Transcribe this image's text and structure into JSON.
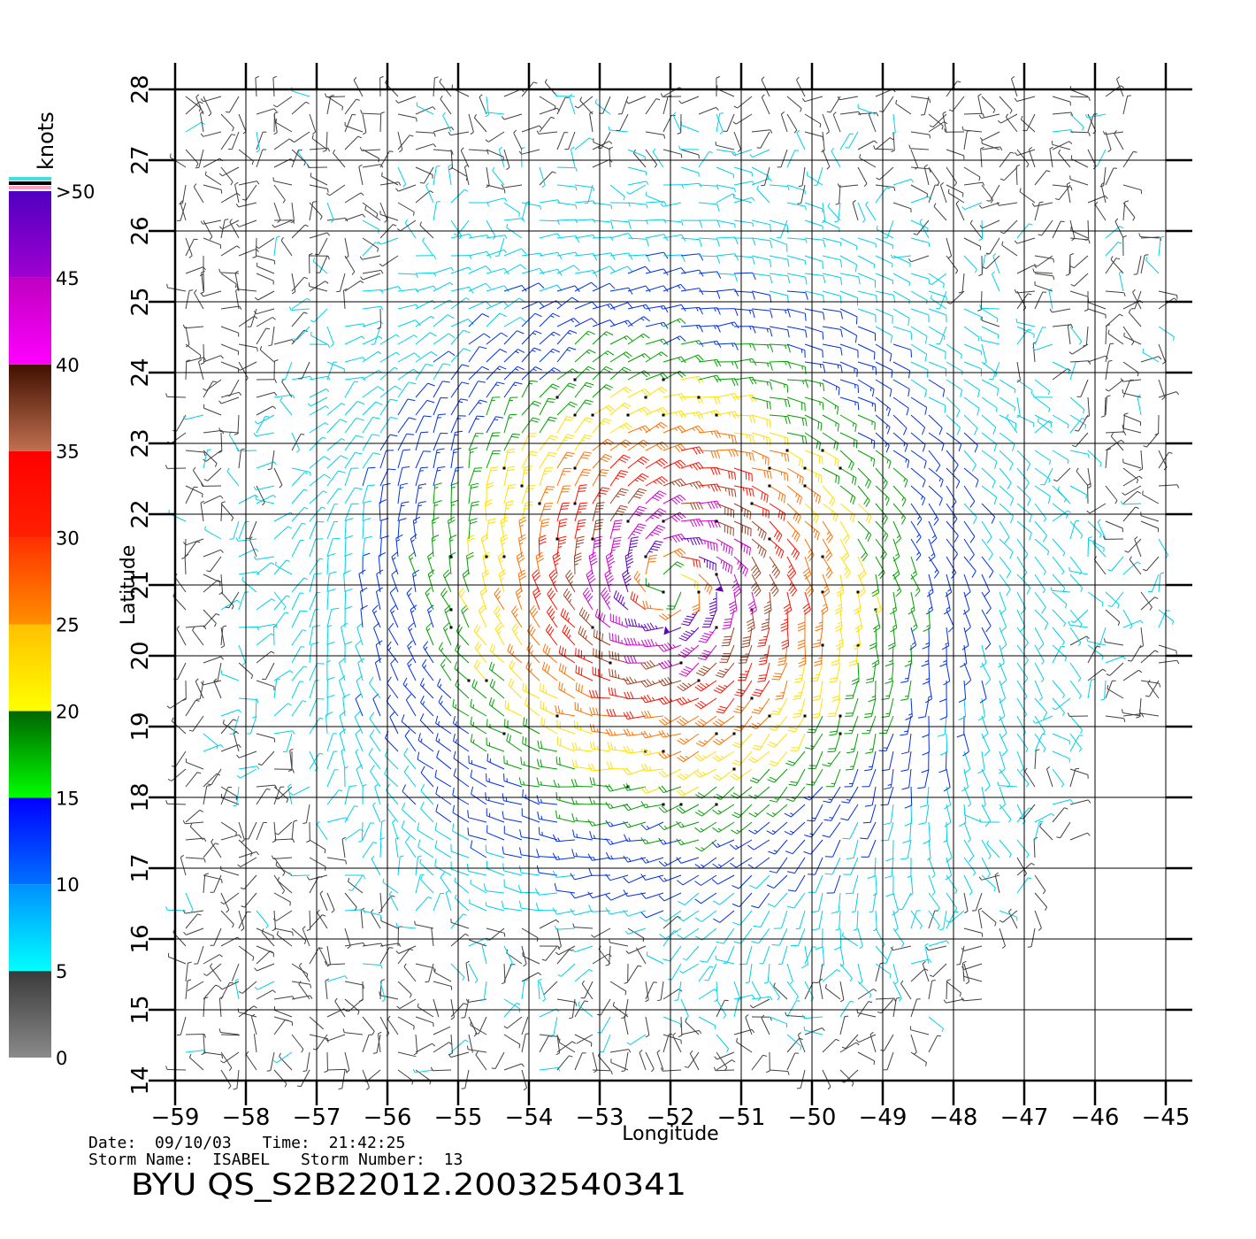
{
  "chart_data": {
    "type": "scatter",
    "plot_kind": "wind-barb map",
    "xlabel": "Longitude",
    "ylabel": "Latitude",
    "xlim": [
      -59,
      -45
    ],
    "ylim": [
      14,
      28
    ],
    "x_ticks": [
      "-59",
      "-58",
      "-57",
      "-56",
      "-55",
      "-54",
      "-53",
      "-52",
      "-51",
      "-50",
      "-49",
      "-48",
      "-47",
      "-46",
      "-45"
    ],
    "y_ticks": [
      "14",
      "15",
      "16",
      "17",
      "18",
      "19",
      "20",
      "21",
      "22",
      "23",
      "24",
      "25",
      "26",
      "27",
      "28"
    ],
    "grid": true,
    "storm_center": {
      "lon": -52.0,
      "lat": 21.0
    },
    "colorbar": {
      "unit": "knots",
      "labels": [
        {
          "value": 0,
          "text": "0"
        },
        {
          "value": 5,
          "text": "5"
        },
        {
          "value": 10,
          "text": "10"
        },
        {
          "value": 15,
          "text": "15"
        },
        {
          "value": 20,
          "text": "20"
        },
        {
          "value": 25,
          "text": "25"
        },
        {
          "value": 30,
          "text": "30"
        },
        {
          "value": 35,
          "text": "35"
        },
        {
          "value": 40,
          "text": "40"
        },
        {
          "value": 45,
          "text": "45"
        },
        {
          "value": 50,
          "text": ">50"
        }
      ],
      "bands": [
        {
          "from": 0,
          "to": 5,
          "top": "#3a3a3a",
          "bottom": "#8a8a8a"
        },
        {
          "from": 5,
          "to": 10,
          "top": "#0090ff",
          "bottom": "#00ffff"
        },
        {
          "from": 10,
          "to": 15,
          "top": "#0000ff",
          "bottom": "#0070ff"
        },
        {
          "from": 15,
          "to": 20,
          "top": "#006400",
          "bottom": "#00ff00"
        },
        {
          "from": 20,
          "to": 25,
          "top": "#ffc000",
          "bottom": "#ffff00"
        },
        {
          "from": 25,
          "to": 30,
          "top": "#ff3000",
          "bottom": "#ff9000"
        },
        {
          "from": 30,
          "to": 35,
          "top": "#ff0000",
          "bottom": "#ff2000"
        },
        {
          "from": 35,
          "to": 40,
          "top": "#401000",
          "bottom": "#c07050"
        },
        {
          "from": 40,
          "to": 45,
          "top": "#c000c0",
          "bottom": "#ff00ff"
        },
        {
          "from": 45,
          "to": 50,
          "top": "#5000c0",
          "bottom": "#a000d0"
        }
      ],
      "strips": [
        "#40e0e0",
        "#000000",
        "#ffa0c0"
      ]
    },
    "speed_colors": [
      {
        "max": 5,
        "color": "#404040"
      },
      {
        "max": 10,
        "color": "#00d0e8"
      },
      {
        "max": 15,
        "color": "#0030e0"
      },
      {
        "max": 20,
        "color": "#00a000"
      },
      {
        "max": 25,
        "color": "#ffe000"
      },
      {
        "max": 30,
        "color": "#ff7000"
      },
      {
        "max": 35,
        "color": "#ff1000"
      },
      {
        "max": 40,
        "color": "#a04020"
      },
      {
        "max": 45,
        "color": "#d000d0"
      },
      {
        "max": 999,
        "color": "#6000c0"
      }
    ]
  },
  "footer": {
    "date_label": "Date:",
    "date": "09/10/03",
    "time_label": "Time:",
    "time": "21:42:25",
    "storm_name_label": "Storm Name:",
    "storm_name": "ISABEL",
    "storm_number_label": "Storm Number:",
    "storm_number": "13",
    "product": "BYU QS_S2B22012.20032540341"
  }
}
